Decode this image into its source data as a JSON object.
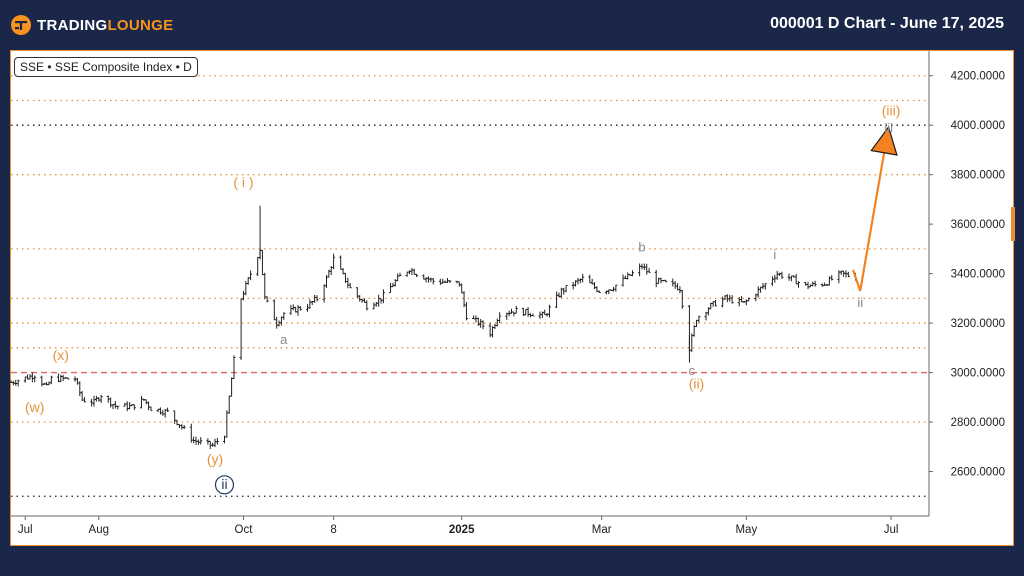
{
  "header": {
    "brand_prefix": "TRADING",
    "brand_suffix": "LOUNGE",
    "title": "000001 D Chart - June 17, 2025"
  },
  "symbol_box": "SSE • SSE Composite Index • D",
  "colors": {
    "background": "#1a2748",
    "accent": "#f7931e",
    "wave_orange": "#e69138",
    "wave_gray": "#8a8a8a",
    "wave_navy": "#1f3a68",
    "bars": "#222222",
    "red_dash": "#e06666",
    "arrow": "#f58220"
  },
  "chart_data": {
    "type": "ohlc",
    "title": "000001 D Chart - June 17, 2025",
    "ylim": [
      2420,
      4300
    ],
    "y_ticks": [
      "4200.0000",
      "4000.0000",
      "3800.0000",
      "3600.0000",
      "3400.0000",
      "3200.0000",
      "3000.0000",
      "2800.0000",
      "2600.0000"
    ],
    "x_ticks": [
      {
        "label": "Jul",
        "date": "2024-07-01",
        "bold": false
      },
      {
        "label": "Aug",
        "date": "2024-08-01",
        "bold": false
      },
      {
        "label": "Oct",
        "date": "2024-10-01",
        "bold": false
      },
      {
        "label": "8",
        "date": "2024-11-08",
        "bold": false
      },
      {
        "label": "2025",
        "date": "2025-01-01",
        "bold": true
      },
      {
        "label": "Mar",
        "date": "2025-03-01",
        "bold": false
      },
      {
        "label": "May",
        "date": "2025-05-01",
        "bold": false
      },
      {
        "label": "Jul",
        "date": "2025-07-01",
        "bold": false
      }
    ],
    "xlim": [
      "2024-06-25",
      "2025-07-17"
    ],
    "horizontal_lines": [
      {
        "y": 4200,
        "style": "dotted",
        "color": "orange"
      },
      {
        "y": 4100,
        "style": "dotted",
        "color": "orange"
      },
      {
        "y": 4000,
        "style": "dotted",
        "color": "black"
      },
      {
        "y": 3800,
        "style": "dotted",
        "color": "orange"
      },
      {
        "y": 3500,
        "style": "dotted",
        "color": "orange"
      },
      {
        "y": 3300,
        "style": "dotted",
        "color": "orange"
      },
      {
        "y": 3200,
        "style": "dotted",
        "color": "orange"
      },
      {
        "y": 3100,
        "style": "dotted",
        "color": "orange"
      },
      {
        "y": 3000,
        "style": "dashed",
        "color": "red"
      },
      {
        "y": 2800,
        "style": "dotted",
        "color": "orange"
      },
      {
        "y": 2500,
        "style": "dotted",
        "color": "black"
      }
    ],
    "price_path": [
      [
        "2024-06-25",
        2960
      ],
      [
        "2024-07-05",
        2990
      ],
      [
        "2024-07-10",
        2940
      ],
      [
        "2024-07-12",
        2975
      ],
      [
        "2024-07-22",
        2975
      ],
      [
        "2024-07-25",
        2890
      ],
      [
        "2024-07-30",
        2880
      ],
      [
        "2024-08-02",
        2910
      ],
      [
        "2024-08-08",
        2865
      ],
      [
        "2024-08-15",
        2862
      ],
      [
        "2024-08-20",
        2890
      ],
      [
        "2024-08-23",
        2855
      ],
      [
        "2024-08-30",
        2840
      ],
      [
        "2024-09-05",
        2780
      ],
      [
        "2024-09-10",
        2725
      ],
      [
        "2024-09-18",
        2705
      ],
      [
        "2024-09-23",
        2750
      ],
      [
        "2024-09-25",
        2900
      ],
      [
        "2024-09-27",
        3050
      ],
      [
        "2024-09-30",
        3300
      ],
      [
        "2024-10-08",
        3500
      ],
      [
        "2024-10-10",
        3300
      ],
      [
        "2024-10-15",
        3200
      ],
      [
        "2024-10-18",
        3240
      ],
      [
        "2024-10-28",
        3270
      ],
      [
        "2024-11-01",
        3300
      ],
      [
        "2024-11-05",
        3380
      ],
      [
        "2024-11-08",
        3460
      ],
      [
        "2024-11-15",
        3340
      ],
      [
        "2024-11-22",
        3270
      ],
      [
        "2024-11-28",
        3300
      ],
      [
        "2024-12-05",
        3380
      ],
      [
        "2024-12-10",
        3420
      ],
      [
        "2024-12-13",
        3400
      ],
      [
        "2024-12-20",
        3370
      ],
      [
        "2024-12-31",
        3360
      ],
      [
        "2025-01-03",
        3230
      ],
      [
        "2025-01-10",
        3190
      ],
      [
        "2025-01-13",
        3160
      ],
      [
        "2025-01-17",
        3240
      ],
      [
        "2025-01-24",
        3250
      ],
      [
        "2025-02-05",
        3230
      ],
      [
        "2025-02-12",
        3330
      ],
      [
        "2025-02-21",
        3380
      ],
      [
        "2025-02-28",
        3330
      ],
      [
        "2025-03-05",
        3340
      ],
      [
        "2025-03-14",
        3400
      ],
      [
        "2025-03-18",
        3430
      ],
      [
        "2025-03-24",
        3370
      ],
      [
        "2025-04-01",
        3350
      ],
      [
        "2025-04-03",
        3340
      ],
      [
        "2025-04-07",
        3100
      ],
      [
        "2025-04-10",
        3220
      ],
      [
        "2025-04-16",
        3270
      ],
      [
        "2025-04-22",
        3300
      ],
      [
        "2025-04-30",
        3280
      ],
      [
        "2025-05-07",
        3340
      ],
      [
        "2025-05-14",
        3400
      ],
      [
        "2025-05-20",
        3380
      ],
      [
        "2025-05-26",
        3350
      ],
      [
        "2025-06-03",
        3360
      ],
      [
        "2025-06-10",
        3400
      ],
      [
        "2025-06-16",
        3385
      ]
    ],
    "spike": {
      "date": "2024-10-08",
      "high": 3674,
      "low": 3460
    },
    "bottom_spike": {
      "date": "2025-04-07",
      "high": 3150,
      "low": 3040
    },
    "projection_arrow": {
      "from": [
        "2025-06-18",
        3330
      ],
      "to": [
        "2025-06-29",
        3940
      ]
    },
    "wave_labels": [
      {
        "text": "(x)",
        "date": "2024-07-16",
        "y": 3050,
        "color": "orange"
      },
      {
        "text": "(w)",
        "date": "2024-07-05",
        "y": 2840,
        "color": "orange"
      },
      {
        "text": "(y)",
        "date": "2024-09-19",
        "y": 2630,
        "color": "orange"
      },
      {
        "text": "ii",
        "date": "2024-09-23",
        "y": 2530,
        "color": "navy",
        "circled": true
      },
      {
        "text": "( i )",
        "date": "2024-10-01",
        "y": 3750,
        "color": "orange"
      },
      {
        "text": "a",
        "date": "2024-10-18",
        "y": 3115,
        "color": "gray"
      },
      {
        "text": "b",
        "date": "2025-03-18",
        "y": 3490,
        "color": "gray"
      },
      {
        "text": "c",
        "date": "2025-04-08",
        "y": 2990,
        "color": "gray"
      },
      {
        "text": "(ii)",
        "date": "2025-04-10",
        "y": 2935,
        "color": "orange"
      },
      {
        "text": "i",
        "date": "2025-05-13",
        "y": 3460,
        "color": "gray"
      },
      {
        "text": "ii",
        "date": "2025-06-18",
        "y": 3265,
        "color": "gray"
      },
      {
        "text": "iii",
        "date": "2025-06-30",
        "y": 3970,
        "color": "gray"
      },
      {
        "text": "(iii)",
        "date": "2025-07-01",
        "y": 4040,
        "color": "orange"
      }
    ]
  }
}
